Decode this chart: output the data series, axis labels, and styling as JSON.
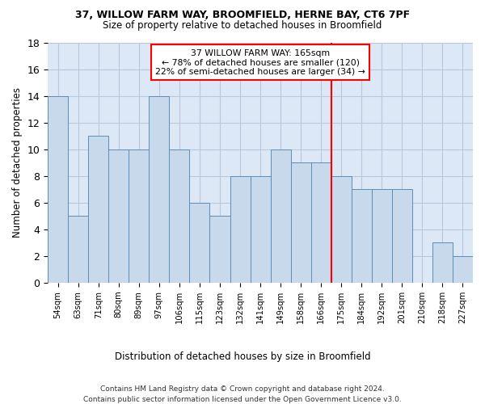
{
  "title1": "37, WILLOW FARM WAY, BROOMFIELD, HERNE BAY, CT6 7PF",
  "title2": "Size of property relative to detached houses in Broomfield",
  "xlabel": "Distribution of detached houses by size in Broomfield",
  "ylabel": "Number of detached properties",
  "footer1": "Contains HM Land Registry data © Crown copyright and database right 2024.",
  "footer2": "Contains public sector information licensed under the Open Government Licence v3.0.",
  "bar_labels": [
    "54sqm",
    "63sqm",
    "71sqm",
    "80sqm",
    "89sqm",
    "97sqm",
    "106sqm",
    "115sqm",
    "123sqm",
    "132sqm",
    "141sqm",
    "149sqm",
    "158sqm",
    "166sqm",
    "175sqm",
    "184sqm",
    "192sqm",
    "201sqm",
    "210sqm",
    "218sqm",
    "227sqm"
  ],
  "bar_values": [
    14,
    5,
    11,
    10,
    10,
    14,
    10,
    6,
    5,
    8,
    8,
    10,
    9,
    9,
    8,
    7,
    7,
    7,
    0,
    3,
    2
  ],
  "bar_color": "#c9d9ec",
  "bar_edgecolor": "#5b8db8",
  "grid_color": "#b8c8dc",
  "vline_bar_index": 13,
  "vline_color": "red",
  "annotation_text": "37 WILLOW FARM WAY: 165sqm\n← 78% of detached houses are smaller (120)\n22% of semi-detached houses are larger (34) →",
  "annotation_box_edgecolor": "red",
  "ylim": [
    0,
    18
  ],
  "yticks": [
    0,
    2,
    4,
    6,
    8,
    10,
    12,
    14,
    16,
    18
  ],
  "bg_color": "#ffffff",
  "plot_bg_color": "#dce8f5"
}
